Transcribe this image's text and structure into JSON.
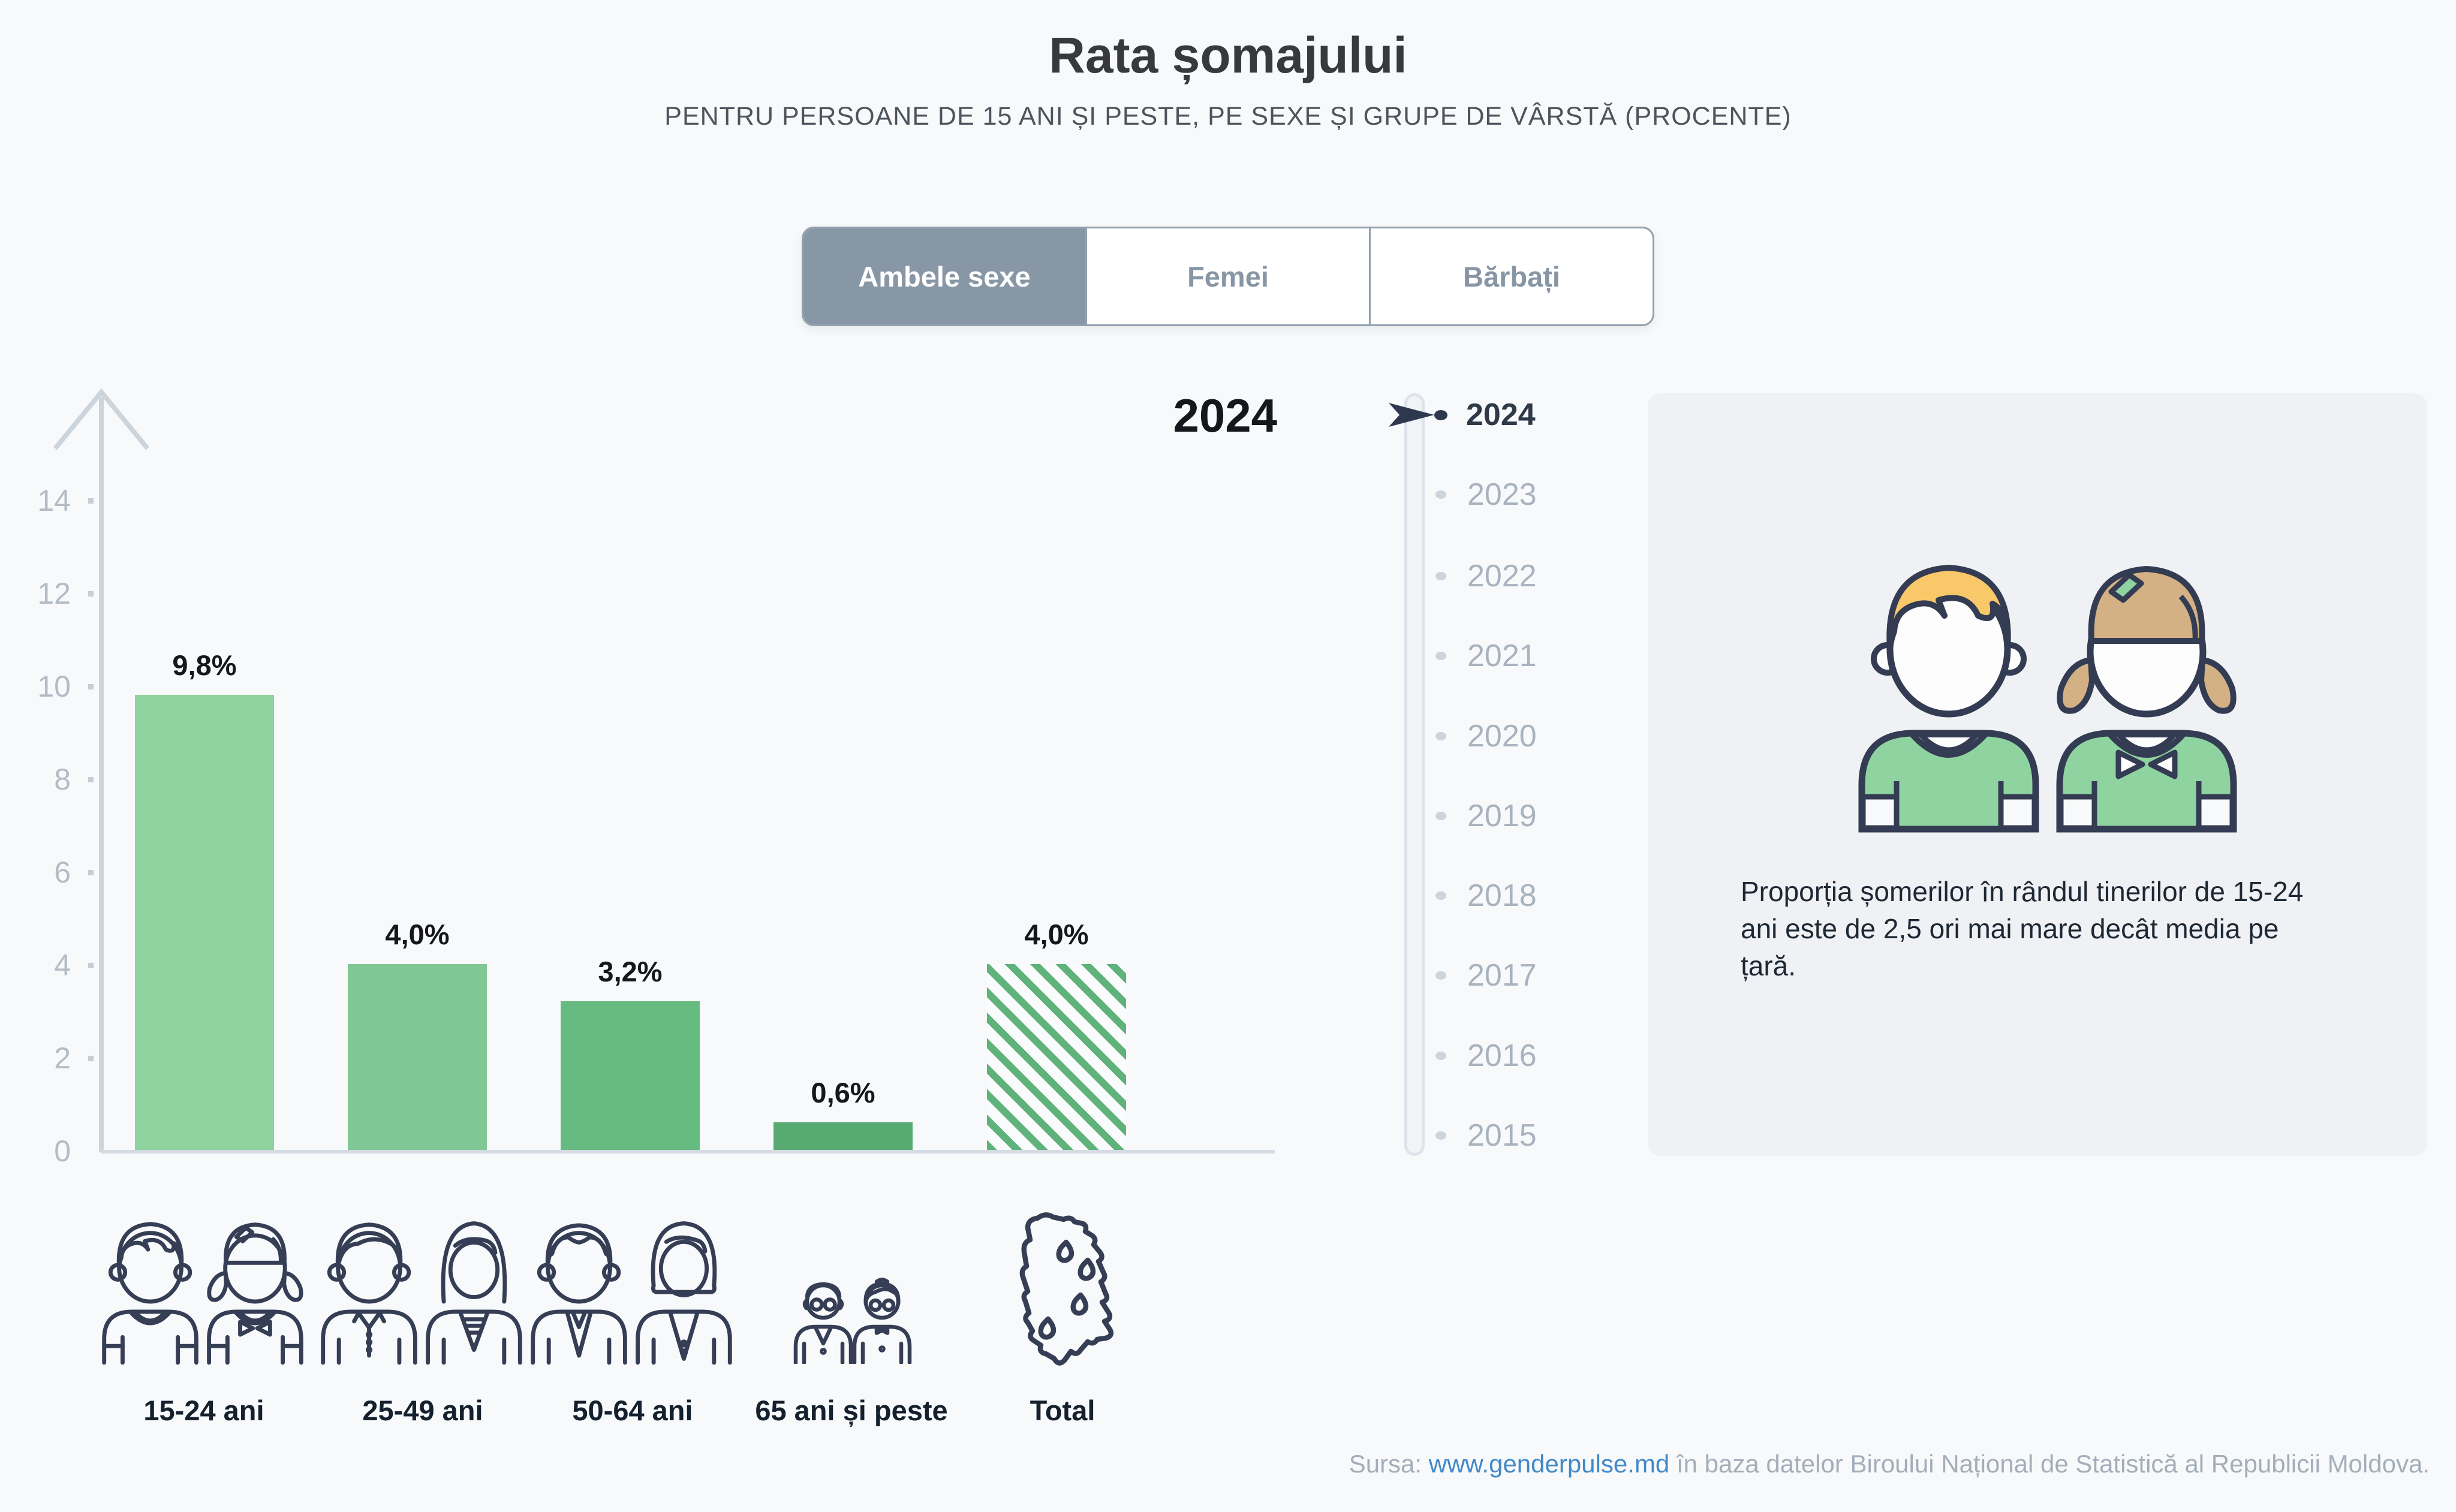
{
  "header": {
    "title": "Rata șomajului",
    "subtitle": "PENTRU PERSOANE DE 15 ANI ȘI PESTE, PE SEXE ȘI GRUPE DE VÂRSTĂ (PROCENTE)"
  },
  "tabs": {
    "items": [
      "Ambele sexe",
      "Femei",
      "Bărbați"
    ],
    "active": "Ambele sexe"
  },
  "chart_data": {
    "type": "bar",
    "title": "Rata șomajului",
    "year_label": "2024",
    "categories": [
      "15-24 ani",
      "25-49 ani",
      "50-64 ani",
      "65 ani și peste",
      "Total"
    ],
    "values": [
      9.8,
      4.0,
      3.2,
      0.6,
      4.0
    ],
    "value_labels": [
      "9,8%",
      "4,0%",
      "3,2%",
      "0,6%",
      "4,0%"
    ],
    "unit": "%",
    "ylim": [
      0,
      15
    ],
    "yticks": [
      "0",
      "2",
      "4",
      "6",
      "8",
      "10",
      "12",
      "14"
    ],
    "grid": false,
    "legend_position": "none",
    "bar_colors": [
      "#8ed3a0",
      "#7fc795",
      "#66bb80",
      "#57ab72",
      "hatch:#5fb27a"
    ],
    "total_bar_style": "diagonal-hatch"
  },
  "timeline": {
    "years": [
      "2024",
      "2023",
      "2022",
      "2021",
      "2020",
      "2019",
      "2018",
      "2017",
      "2016",
      "2015"
    ],
    "selected": "2024"
  },
  "info_panel": {
    "text": "Proporția șomerilor în rândul tinerilor de 15-24 ani este de 2,5 ori mai mare decât media pe țară."
  },
  "source": {
    "prefix": "Sursa: ",
    "link_text": "www.genderpulse.md",
    "suffix": " în baza datelor Biroului Național de Statistică al Republicii Moldova."
  }
}
